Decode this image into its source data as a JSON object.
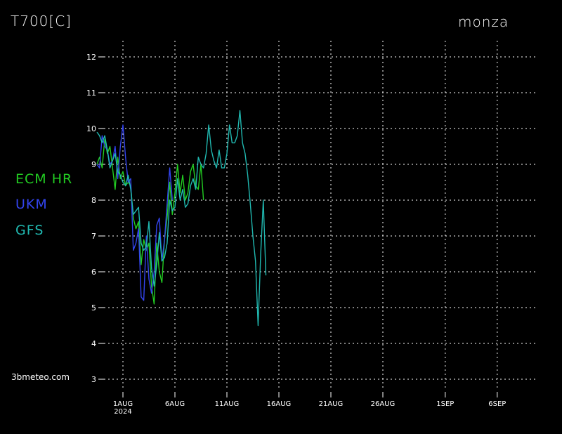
{
  "header": {
    "variable": "T700[C]",
    "location": "monza"
  },
  "credit": "3bmeteo.com",
  "legend": [
    {
      "label": "ECM HR",
      "color": "#22cc22"
    },
    {
      "label": "UKM",
      "color": "#3344ee"
    },
    {
      "label": "GFS",
      "color": "#20b8b0"
    }
  ],
  "chart_data": {
    "type": "line",
    "title": "T700[C]",
    "ylim": [
      3,
      12
    ],
    "yticks": [
      3,
      4,
      5,
      6,
      7,
      8,
      9,
      10,
      11,
      12
    ],
    "xlim": [
      "2024-07-27",
      "2024-09-08"
    ],
    "xticks": [
      {
        "date": "2024-08-01",
        "label": "1AUG",
        "sublabel": "2024"
      },
      {
        "date": "2024-08-06",
        "label": "6AUG"
      },
      {
        "date": "2024-08-11",
        "label": "11AUG"
      },
      {
        "date": "2024-08-16",
        "label": "16AUG"
      },
      {
        "date": "2024-08-21",
        "label": "21AUG"
      },
      {
        "date": "2024-08-26",
        "label": "26AUG"
      },
      {
        "date": "2024-09-01",
        "label": "1SEP"
      },
      {
        "date": "2024-09-06",
        "label": "6SEP"
      }
    ],
    "grid": true,
    "series": [
      {
        "name": "ECM HR",
        "color": "#22cc22",
        "points": [
          [
            "2024-07-29 12:00",
            9.0
          ],
          [
            "2024-07-29 18:00",
            9.2
          ],
          [
            "2024-07-30 00:00",
            8.9
          ],
          [
            "2024-07-30 06:00",
            9.7
          ],
          [
            "2024-07-30 12:00",
            9.3
          ],
          [
            "2024-07-30 18:00",
            9.5
          ],
          [
            "2024-07-31 00:00",
            8.9
          ],
          [
            "2024-07-31 06:00",
            8.3
          ],
          [
            "2024-07-31 12:00",
            9.2
          ],
          [
            "2024-07-31 18:00",
            8.6
          ],
          [
            "2024-08-01 00:00",
            8.8
          ],
          [
            "2024-08-01 06:00",
            8.4
          ],
          [
            "2024-08-01 12:00",
            8.5
          ],
          [
            "2024-08-01 18:00",
            8.4
          ],
          [
            "2024-08-02 00:00",
            7.5
          ],
          [
            "2024-08-02 06:00",
            7.2
          ],
          [
            "2024-08-02 12:00",
            7.4
          ],
          [
            "2024-08-02 18:00",
            6.2
          ],
          [
            "2024-08-03 00:00",
            6.9
          ],
          [
            "2024-08-03 06:00",
            6.6
          ],
          [
            "2024-08-03 12:00",
            6.8
          ],
          [
            "2024-08-03 18:00",
            5.6
          ],
          [
            "2024-08-04 00:00",
            5.1
          ],
          [
            "2024-08-04 06:00",
            6.8
          ],
          [
            "2024-08-04 12:00",
            6.0
          ],
          [
            "2024-08-04 18:00",
            5.7
          ],
          [
            "2024-08-05 00:00",
            6.9
          ],
          [
            "2024-08-05 06:00",
            7.5
          ],
          [
            "2024-08-05 12:00",
            8.5
          ],
          [
            "2024-08-05 18:00",
            7.6
          ],
          [
            "2024-08-06 00:00",
            8.2
          ],
          [
            "2024-08-06 06:00",
            9.0
          ],
          [
            "2024-08-06 12:00",
            8.2
          ],
          [
            "2024-08-06 18:00",
            8.7
          ],
          [
            "2024-08-07 00:00",
            8.0
          ],
          [
            "2024-08-07 06:00",
            8.2
          ],
          [
            "2024-08-07 12:00",
            8.8
          ],
          [
            "2024-08-07 18:00",
            9.0
          ],
          [
            "2024-08-08 00:00",
            8.4
          ],
          [
            "2024-08-08 06:00",
            8.3
          ],
          [
            "2024-08-08 12:00",
            9.0
          ],
          [
            "2024-08-08 18:00",
            8.0
          ]
        ]
      },
      {
        "name": "UKM",
        "color": "#3344ee",
        "points": [
          [
            "2024-07-29 12:00",
            9.0
          ],
          [
            "2024-07-29 18:00",
            8.9
          ],
          [
            "2024-07-30 00:00",
            9.8
          ],
          [
            "2024-07-30 06:00",
            9.5
          ],
          [
            "2024-07-30 12:00",
            9.4
          ],
          [
            "2024-07-30 18:00",
            9.0
          ],
          [
            "2024-07-31 00:00",
            9.1
          ],
          [
            "2024-07-31 06:00",
            9.5
          ],
          [
            "2024-07-31 12:00",
            8.6
          ],
          [
            "2024-07-31 18:00",
            9.5
          ],
          [
            "2024-08-01 00:00",
            10.1
          ],
          [
            "2024-08-01 06:00",
            9.2
          ],
          [
            "2024-08-01 12:00",
            8.5
          ],
          [
            "2024-08-01 18:00",
            8.6
          ],
          [
            "2024-08-02 00:00",
            6.6
          ],
          [
            "2024-08-02 06:00",
            6.8
          ],
          [
            "2024-08-02 12:00",
            7.2
          ],
          [
            "2024-08-02 18:00",
            5.3
          ],
          [
            "2024-08-03 00:00",
            5.2
          ],
          [
            "2024-08-03 06:00",
            7.0
          ],
          [
            "2024-08-03 12:00",
            5.8
          ],
          [
            "2024-08-03 18:00",
            5.4
          ],
          [
            "2024-08-04 00:00",
            6.0
          ],
          [
            "2024-08-04 06:00",
            7.3
          ],
          [
            "2024-08-04 12:00",
            7.5
          ],
          [
            "2024-08-04 18:00",
            6.3
          ],
          [
            "2024-08-05 00:00",
            6.9
          ],
          [
            "2024-08-05 06:00",
            7.9
          ],
          [
            "2024-08-05 12:00",
            8.9
          ],
          [
            "2024-08-05 18:00",
            8.0
          ]
        ]
      },
      {
        "name": "GFS",
        "color": "#20b8b0",
        "points": [
          [
            "2024-07-29 12:00",
            9.9
          ],
          [
            "2024-07-29 18:00",
            9.8
          ],
          [
            "2024-07-30 00:00",
            9.6
          ],
          [
            "2024-07-30 06:00",
            9.8
          ],
          [
            "2024-07-30 12:00",
            9.4
          ],
          [
            "2024-07-30 18:00",
            8.9
          ],
          [
            "2024-07-31 00:00",
            9.1
          ],
          [
            "2024-07-31 06:00",
            9.3
          ],
          [
            "2024-07-31 12:00",
            8.8
          ],
          [
            "2024-07-31 18:00",
            8.7
          ],
          [
            "2024-08-01 00:00",
            8.5
          ],
          [
            "2024-08-01 06:00",
            8.4
          ],
          [
            "2024-08-01 12:00",
            8.7
          ],
          [
            "2024-08-01 18:00",
            8.3
          ],
          [
            "2024-08-02 00:00",
            7.6
          ],
          [
            "2024-08-02 06:00",
            7.7
          ],
          [
            "2024-08-02 12:00",
            7.8
          ],
          [
            "2024-08-02 18:00",
            6.8
          ],
          [
            "2024-08-03 00:00",
            6.6
          ],
          [
            "2024-08-03 06:00",
            6.7
          ],
          [
            "2024-08-03 12:00",
            7.4
          ],
          [
            "2024-08-03 18:00",
            6.1
          ],
          [
            "2024-08-04 00:00",
            5.6
          ],
          [
            "2024-08-04 06:00",
            6.2
          ],
          [
            "2024-08-04 12:00",
            7.1
          ],
          [
            "2024-08-04 18:00",
            6.3
          ],
          [
            "2024-08-05 00:00",
            6.4
          ],
          [
            "2024-08-05 06:00",
            6.8
          ],
          [
            "2024-08-05 12:00",
            8.0
          ],
          [
            "2024-08-05 18:00",
            7.7
          ],
          [
            "2024-08-06 00:00",
            7.8
          ],
          [
            "2024-08-06 06:00",
            8.6
          ],
          [
            "2024-08-06 12:00",
            8.0
          ],
          [
            "2024-08-06 18:00",
            8.3
          ],
          [
            "2024-08-07 00:00",
            7.8
          ],
          [
            "2024-08-07 06:00",
            7.9
          ],
          [
            "2024-08-07 12:00",
            8.4
          ],
          [
            "2024-08-07 18:00",
            8.6
          ],
          [
            "2024-08-08 00:00",
            8.3
          ],
          [
            "2024-08-08 06:00",
            9.2
          ],
          [
            "2024-08-08 12:00",
            9.0
          ],
          [
            "2024-08-08 18:00",
            8.9
          ],
          [
            "2024-08-09 00:00",
            9.3
          ],
          [
            "2024-08-09 06:00",
            10.1
          ],
          [
            "2024-08-09 12:00",
            9.4
          ],
          [
            "2024-08-09 18:00",
            9.1
          ],
          [
            "2024-08-10 00:00",
            8.9
          ],
          [
            "2024-08-10 06:00",
            9.4
          ],
          [
            "2024-08-10 12:00",
            8.9
          ],
          [
            "2024-08-10 18:00",
            8.9
          ],
          [
            "2024-08-11 00:00",
            9.3
          ],
          [
            "2024-08-11 06:00",
            10.1
          ],
          [
            "2024-08-11 12:00",
            9.6
          ],
          [
            "2024-08-11 18:00",
            9.6
          ],
          [
            "2024-08-12 00:00",
            9.8
          ],
          [
            "2024-08-12 06:00",
            10.5
          ],
          [
            "2024-08-12 12:00",
            9.6
          ],
          [
            "2024-08-12 18:00",
            9.3
          ],
          [
            "2024-08-13 00:00",
            8.7
          ],
          [
            "2024-08-13 06:00",
            7.9
          ],
          [
            "2024-08-13 12:00",
            7.0
          ],
          [
            "2024-08-13 18:00",
            6.3
          ],
          [
            "2024-08-14 00:00",
            4.5
          ],
          [
            "2024-08-14 06:00",
            6.5
          ],
          [
            "2024-08-14 12:00",
            8.0
          ],
          [
            "2024-08-14 18:00",
            5.9
          ]
        ]
      }
    ]
  }
}
